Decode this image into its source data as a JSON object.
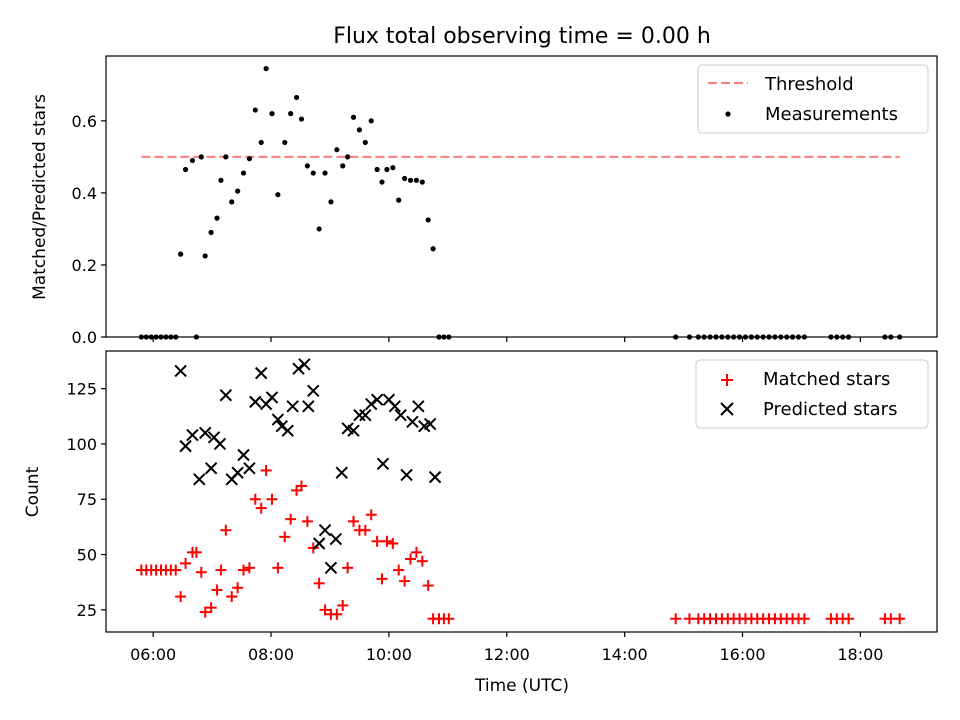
{
  "chart_data": [
    {
      "type": "scatter",
      "title": "Flux total observing time = 0.00 h",
      "ylabel": "Matched/Predicted stars",
      "ylim": [
        0,
        0.78
      ],
      "xlim_hours": [
        5.2,
        19.3
      ],
      "yticks": [
        "0.0",
        "0.2",
        "0.4",
        "0.6"
      ],
      "grid": false,
      "legend_position": "top-right",
      "threshold": {
        "name": "Threshold",
        "color": "#ff7f7f",
        "style": "dashed",
        "y": 0.5,
        "x_range": [
          "05:48",
          "18:40"
        ]
      },
      "series": [
        {
          "name": "Measurements",
          "color": "#000000",
          "marker": "dot",
          "points": [
            [
              "05:48",
              0
            ],
            [
              "05:53",
              0
            ],
            [
              "05:58",
              0
            ],
            [
              "06:03",
              0
            ],
            [
              "06:08",
              0
            ],
            [
              "06:13",
              0
            ],
            [
              "06:18",
              0
            ],
            [
              "06:23",
              0
            ],
            [
              "06:28",
              0.23
            ],
            [
              "06:33",
              0.465
            ],
            [
              "06:40",
              0.49
            ],
            [
              "06:44",
              0
            ],
            [
              "06:49",
              0.5
            ],
            [
              "06:53",
              0.225
            ],
            [
              "06:59",
              0.29
            ],
            [
              "07:05",
              0.33
            ],
            [
              "07:09",
              0.435
            ],
            [
              "07:14",
              0.5
            ],
            [
              "07:20",
              0.375
            ],
            [
              "07:26",
              0.405
            ],
            [
              "07:32",
              0.455
            ],
            [
              "07:38",
              0.495
            ],
            [
              "07:44",
              0.63
            ],
            [
              "07:50",
              0.54
            ],
            [
              "07:55",
              0.745
            ],
            [
              "08:01",
              0.62
            ],
            [
              "08:07",
              0.395
            ],
            [
              "08:14",
              0.54
            ],
            [
              "08:20",
              0.62
            ],
            [
              "08:26",
              0.665
            ],
            [
              "08:31",
              0.605
            ],
            [
              "08:37",
              0.475
            ],
            [
              "08:43",
              0.455
            ],
            [
              "08:49",
              0.3
            ],
            [
              "08:55",
              0.455
            ],
            [
              "09:01",
              0.375
            ],
            [
              "09:07",
              0.52
            ],
            [
              "09:13",
              0.475
            ],
            [
              "09:18",
              0.5
            ],
            [
              "09:24",
              0.61
            ],
            [
              "09:30",
              0.575
            ],
            [
              "09:36",
              0.54
            ],
            [
              "09:42",
              0.6
            ],
            [
              "09:48",
              0.465
            ],
            [
              "09:53",
              0.43
            ],
            [
              "09:58",
              0.465
            ],
            [
              "10:04",
              0.47
            ],
            [
              "10:10",
              0.38
            ],
            [
              "10:16",
              0.44
            ],
            [
              "10:22",
              0.435
            ],
            [
              "10:28",
              0.435
            ],
            [
              "10:34",
              0.43
            ],
            [
              "10:40",
              0.325
            ],
            [
              "10:45",
              0.245
            ],
            [
              "10:51",
              0
            ],
            [
              "10:56",
              0
            ],
            [
              "11:01",
              0
            ],
            [
              "14:52",
              0
            ],
            [
              "15:06",
              0
            ],
            [
              "15:15",
              0
            ],
            [
              "15:21",
              0
            ],
            [
              "15:27",
              0
            ],
            [
              "15:33",
              0
            ],
            [
              "15:39",
              0
            ],
            [
              "15:45",
              0
            ],
            [
              "15:51",
              0
            ],
            [
              "15:57",
              0
            ],
            [
              "16:03",
              0
            ],
            [
              "16:09",
              0
            ],
            [
              "16:15",
              0
            ],
            [
              "16:21",
              0
            ],
            [
              "16:27",
              0
            ],
            [
              "16:33",
              0
            ],
            [
              "16:39",
              0
            ],
            [
              "16:45",
              0
            ],
            [
              "16:51",
              0
            ],
            [
              "16:57",
              0
            ],
            [
              "17:03",
              0
            ],
            [
              "17:30",
              0
            ],
            [
              "17:36",
              0
            ],
            [
              "17:42",
              0
            ],
            [
              "17:48",
              0
            ],
            [
              "18:25",
              0
            ],
            [
              "18:31",
              0
            ],
            [
              "18:40",
              0
            ]
          ]
        }
      ]
    },
    {
      "type": "scatter",
      "xlabel": "Time (UTC)",
      "ylabel": "Count",
      "ylim": [
        15,
        142
      ],
      "xlim_hours": [
        5.2,
        19.3
      ],
      "xticks": [
        "06:00",
        "08:00",
        "10:00",
        "12:00",
        "14:00",
        "16:00",
        "18:00"
      ],
      "yticks": [
        "25",
        "50",
        "75",
        "100",
        "125"
      ],
      "grid": false,
      "legend_position": "top-right",
      "series": [
        {
          "name": "Matched stars",
          "color": "#ff0000",
          "marker": "plus",
          "points": [
            [
              "05:48",
              43
            ],
            [
              "05:53",
              43
            ],
            [
              "05:58",
              43
            ],
            [
              "06:03",
              43
            ],
            [
              "06:08",
              43
            ],
            [
              "06:13",
              43
            ],
            [
              "06:18",
              43
            ],
            [
              "06:23",
              43
            ],
            [
              "06:28",
              31
            ],
            [
              "06:33",
              46
            ],
            [
              "06:40",
              51
            ],
            [
              "06:44",
              51
            ],
            [
              "06:49",
              42
            ],
            [
              "06:53",
              24
            ],
            [
              "06:59",
              26
            ],
            [
              "07:05",
              34
            ],
            [
              "07:09",
              43
            ],
            [
              "07:14",
              61
            ],
            [
              "07:20",
              31
            ],
            [
              "07:26",
              35
            ],
            [
              "07:32",
              43
            ],
            [
              "07:38",
              44
            ],
            [
              "07:44",
              75
            ],
            [
              "07:50",
              71
            ],
            [
              "07:55",
              88
            ],
            [
              "08:01",
              75
            ],
            [
              "08:07",
              44
            ],
            [
              "08:14",
              58
            ],
            [
              "08:20",
              66
            ],
            [
              "08:26",
              79
            ],
            [
              "08:31",
              81
            ],
            [
              "08:37",
              65
            ],
            [
              "08:43",
              53
            ],
            [
              "08:49",
              37
            ],
            [
              "08:55",
              25
            ],
            [
              "09:01",
              23
            ],
            [
              "09:07",
              23
            ],
            [
              "09:13",
              27
            ],
            [
              "09:18",
              44
            ],
            [
              "09:24",
              65
            ],
            [
              "09:30",
              61
            ],
            [
              "09:36",
              61
            ],
            [
              "09:42",
              68
            ],
            [
              "09:48",
              56
            ],
            [
              "09:53",
              39
            ],
            [
              "09:58",
              56
            ],
            [
              "10:04",
              55
            ],
            [
              "10:10",
              43
            ],
            [
              "10:16",
              38
            ],
            [
              "10:22",
              48
            ],
            [
              "10:28",
              51
            ],
            [
              "10:34",
              47
            ],
            [
              "10:40",
              36
            ],
            [
              "10:45",
              21
            ],
            [
              "10:51",
              21
            ],
            [
              "10:56",
              21
            ],
            [
              "11:01",
              21
            ],
            [
              "14:52",
              21
            ],
            [
              "15:06",
              21
            ],
            [
              "15:15",
              21
            ],
            [
              "15:21",
              21
            ],
            [
              "15:27",
              21
            ],
            [
              "15:33",
              21
            ],
            [
              "15:39",
              21
            ],
            [
              "15:45",
              21
            ],
            [
              "15:51",
              21
            ],
            [
              "15:57",
              21
            ],
            [
              "16:03",
              21
            ],
            [
              "16:09",
              21
            ],
            [
              "16:15",
              21
            ],
            [
              "16:21",
              21
            ],
            [
              "16:27",
              21
            ],
            [
              "16:33",
              21
            ],
            [
              "16:39",
              21
            ],
            [
              "16:45",
              21
            ],
            [
              "16:51",
              21
            ],
            [
              "16:57",
              21
            ],
            [
              "17:03",
              21
            ],
            [
              "17:30",
              21
            ],
            [
              "17:36",
              21
            ],
            [
              "17:42",
              21
            ],
            [
              "17:48",
              21
            ],
            [
              "18:25",
              21
            ],
            [
              "18:31",
              21
            ],
            [
              "18:40",
              21
            ]
          ]
        },
        {
          "name": "Predicted stars",
          "color": "#000000",
          "marker": "x",
          "points": [
            [
              "06:28",
              133
            ],
            [
              "06:33",
              99
            ],
            [
              "06:40",
              104
            ],
            [
              "06:47",
              84
            ],
            [
              "06:53",
              105
            ],
            [
              "06:59",
              89
            ],
            [
              "07:02",
              103
            ],
            [
              "07:08",
              100
            ],
            [
              "07:14",
              122
            ],
            [
              "07:20",
              84
            ],
            [
              "07:26",
              87
            ],
            [
              "07:32",
              95
            ],
            [
              "07:38",
              89
            ],
            [
              "07:44",
              119
            ],
            [
              "07:50",
              132
            ],
            [
              "07:55",
              118
            ],
            [
              "08:01",
              121
            ],
            [
              "08:07",
              111
            ],
            [
              "08:11",
              108
            ],
            [
              "08:17",
              106
            ],
            [
              "08:22",
              117
            ],
            [
              "08:28",
              134
            ],
            [
              "08:34",
              136
            ],
            [
              "08:38",
              117
            ],
            [
              "08:43",
              124
            ],
            [
              "08:49",
              55
            ],
            [
              "08:55",
              61
            ],
            [
              "09:01",
              44
            ],
            [
              "09:06",
              57
            ],
            [
              "09:12",
              87
            ],
            [
              "09:18",
              107
            ],
            [
              "09:24",
              106
            ],
            [
              "09:30",
              113
            ],
            [
              "09:36",
              113
            ],
            [
              "09:42",
              118
            ],
            [
              "09:48",
              120
            ],
            [
              "09:54",
              91
            ],
            [
              "10:00",
              120
            ],
            [
              "10:06",
              117
            ],
            [
              "10:12",
              113
            ],
            [
              "10:18",
              86
            ],
            [
              "10:24",
              110
            ],
            [
              "10:30",
              117
            ],
            [
              "10:36",
              108
            ],
            [
              "10:42",
              109
            ],
            [
              "10:47",
              85
            ]
          ]
        }
      ]
    }
  ]
}
